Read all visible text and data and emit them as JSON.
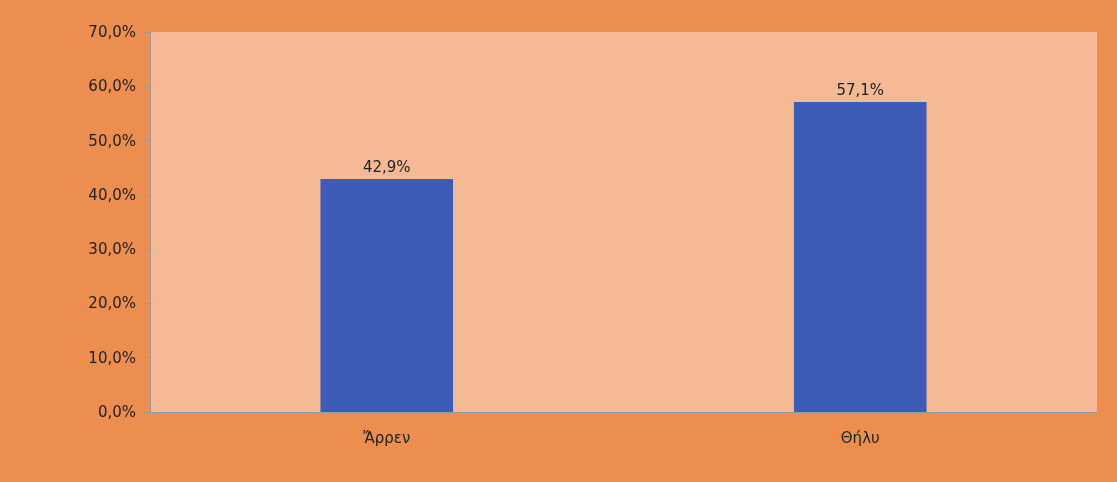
{
  "chart_data": {
    "type": "bar",
    "categories": [
      "Ἄρρεν",
      "Θήλυ"
    ],
    "values": [
      42.9,
      57.1
    ],
    "color": "#3d5cb8",
    "value_labels": [
      "42,9%",
      "57,1%"
    ],
    "ylim": [
      0,
      70
    ],
    "yticks": [
      {
        "value": 0,
        "label": "0,0%"
      },
      {
        "value": 10,
        "label": "10,0%"
      },
      {
        "value": 20,
        "label": "20,0%"
      },
      {
        "value": 30,
        "label": "30,0%"
      },
      {
        "value": 40,
        "label": "40,0%"
      },
      {
        "value": 50,
        "label": "50,0%"
      },
      {
        "value": 60,
        "label": "60,0%"
      },
      {
        "value": 70,
        "label": "70,0%"
      }
    ],
    "grid": false
  }
}
